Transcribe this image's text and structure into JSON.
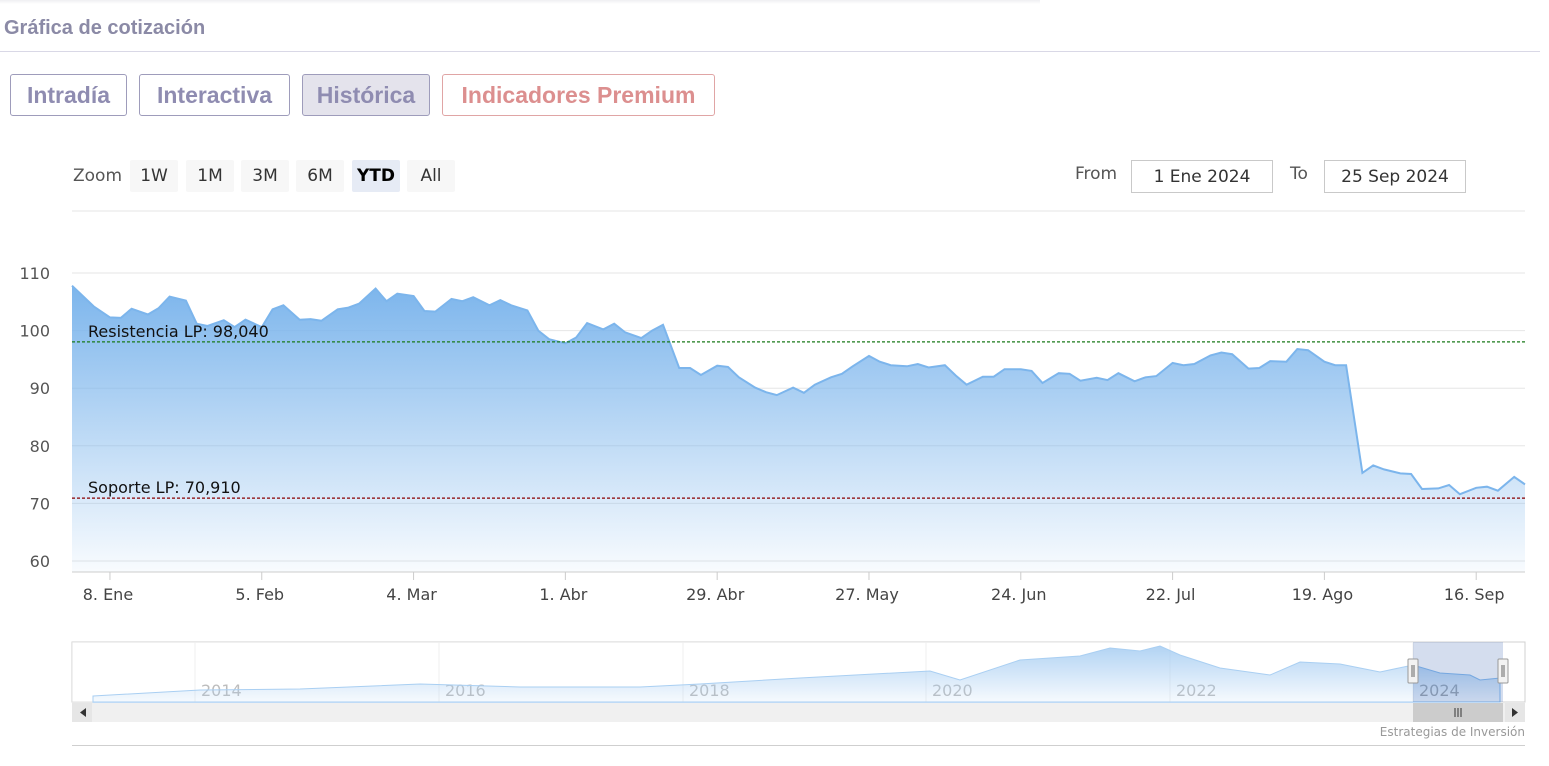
{
  "page": {
    "title": "Gráfica de cotización"
  },
  "tabs": [
    {
      "label": "Intradía",
      "active": false
    },
    {
      "label": "Interactiva",
      "active": false
    },
    {
      "label": "Histórica",
      "active": true
    },
    {
      "label": "Indicadores Premium",
      "premium": true
    }
  ],
  "range_selector": {
    "zoom_label": "Zoom",
    "buttons": [
      "1W",
      "1M",
      "3M",
      "6M",
      "YTD",
      "All"
    ],
    "selected": "YTD",
    "from_label": "From",
    "from_value": "1 Ene 2024",
    "to_label": "To",
    "to_value": "25 Sep 2024"
  },
  "credits": "Estrategias de Inversión",
  "colors": {
    "line": "#7cb5ec",
    "resistance": "#1a7a1a",
    "support": "#8b0000",
    "tab_text": "#8f8cb1",
    "premium_text": "#dc8f8f"
  },
  "chart_data": {
    "type": "area",
    "ylim": [
      60,
      110
    ],
    "yticks": [
      60,
      70,
      80,
      90,
      100,
      110
    ],
    "x_ticks": [
      {
        "date": "2024-01-08",
        "label": "8. Ene"
      },
      {
        "date": "2024-02-05",
        "label": "5. Feb"
      },
      {
        "date": "2024-03-04",
        "label": "4. Mar"
      },
      {
        "date": "2024-04-01",
        "label": "1. Abr"
      },
      {
        "date": "2024-04-29",
        "label": "29. Abr"
      },
      {
        "date": "2024-05-27",
        "label": "27. May"
      },
      {
        "date": "2024-06-24",
        "label": "24. Jun"
      },
      {
        "date": "2024-07-22",
        "label": "22. Jul"
      },
      {
        "date": "2024-08-19",
        "label": "19. Ago"
      },
      {
        "date": "2024-09-16",
        "label": "16. Sep"
      }
    ],
    "xlim": [
      "2024-01-01",
      "2024-09-25"
    ],
    "series": [
      {
        "points": [
          [
            "2024-01-01",
            107.8
          ],
          [
            "2024-01-03",
            106.0
          ],
          [
            "2024-01-05",
            104.2
          ],
          [
            "2024-01-08",
            102.3
          ],
          [
            "2024-01-10",
            102.2
          ],
          [
            "2024-01-12",
            103.8
          ],
          [
            "2024-01-15",
            102.8
          ],
          [
            "2024-01-17",
            103.9
          ],
          [
            "2024-01-19",
            105.9
          ],
          [
            "2024-01-22",
            105.2
          ],
          [
            "2024-01-24",
            101.2
          ],
          [
            "2024-01-26",
            100.8
          ],
          [
            "2024-01-29",
            101.8
          ],
          [
            "2024-01-31",
            100.6
          ],
          [
            "2024-02-02",
            101.9
          ],
          [
            "2024-02-05",
            100.6
          ],
          [
            "2024-02-07",
            103.7
          ],
          [
            "2024-02-09",
            104.4
          ],
          [
            "2024-02-12",
            101.9
          ],
          [
            "2024-02-14",
            102.0
          ],
          [
            "2024-02-16",
            101.7
          ],
          [
            "2024-02-19",
            103.7
          ],
          [
            "2024-02-21",
            104.0
          ],
          [
            "2024-02-23",
            104.7
          ],
          [
            "2024-02-26",
            107.3
          ],
          [
            "2024-02-28",
            105.1
          ],
          [
            "2024-03-01",
            106.4
          ],
          [
            "2024-03-04",
            106.0
          ],
          [
            "2024-03-06",
            103.4
          ],
          [
            "2024-03-08",
            103.3
          ],
          [
            "2024-03-11",
            105.5
          ],
          [
            "2024-03-13",
            105.1
          ],
          [
            "2024-03-15",
            105.8
          ],
          [
            "2024-03-18",
            104.4
          ],
          [
            "2024-03-20",
            105.3
          ],
          [
            "2024-03-22",
            104.4
          ],
          [
            "2024-03-25",
            103.5
          ],
          [
            "2024-03-27",
            100.0
          ],
          [
            "2024-03-29",
            98.5
          ],
          [
            "2024-04-01",
            97.8
          ],
          [
            "2024-04-03",
            98.8
          ],
          [
            "2024-04-05",
            101.3
          ],
          [
            "2024-04-08",
            100.2
          ],
          [
            "2024-04-10",
            101.2
          ],
          [
            "2024-04-12",
            99.7
          ],
          [
            "2024-04-15",
            98.7
          ],
          [
            "2024-04-17",
            100.0
          ],
          [
            "2024-04-19",
            101.0
          ],
          [
            "2024-04-22",
            93.5
          ],
          [
            "2024-04-24",
            93.5
          ],
          [
            "2024-04-26",
            92.3
          ],
          [
            "2024-04-29",
            93.9
          ],
          [
            "2024-05-01",
            93.7
          ],
          [
            "2024-05-03",
            91.9
          ],
          [
            "2024-05-06",
            90.1
          ],
          [
            "2024-05-08",
            89.3
          ],
          [
            "2024-05-10",
            88.8
          ],
          [
            "2024-05-13",
            90.1
          ],
          [
            "2024-05-15",
            89.2
          ],
          [
            "2024-05-17",
            90.6
          ],
          [
            "2024-05-20",
            91.9
          ],
          [
            "2024-05-22",
            92.5
          ],
          [
            "2024-05-24",
            93.8
          ],
          [
            "2024-05-27",
            95.6
          ],
          [
            "2024-05-29",
            94.6
          ],
          [
            "2024-05-31",
            94.0
          ],
          [
            "2024-06-03",
            93.8
          ],
          [
            "2024-06-05",
            94.2
          ],
          [
            "2024-06-07",
            93.6
          ],
          [
            "2024-06-10",
            94.0
          ],
          [
            "2024-06-12",
            92.2
          ],
          [
            "2024-06-14",
            90.6
          ],
          [
            "2024-06-17",
            92.0
          ],
          [
            "2024-06-19",
            92.0
          ],
          [
            "2024-06-21",
            93.3
          ],
          [
            "2024-06-24",
            93.3
          ],
          [
            "2024-06-26",
            93.0
          ],
          [
            "2024-06-28",
            90.9
          ],
          [
            "2024-07-01",
            92.6
          ],
          [
            "2024-07-03",
            92.5
          ],
          [
            "2024-07-05",
            91.3
          ],
          [
            "2024-07-08",
            91.8
          ],
          [
            "2024-07-10",
            91.4
          ],
          [
            "2024-07-12",
            92.6
          ],
          [
            "2024-07-15",
            91.2
          ],
          [
            "2024-07-17",
            91.9
          ],
          [
            "2024-07-19",
            92.1
          ],
          [
            "2024-07-22",
            94.4
          ],
          [
            "2024-07-24",
            94.0
          ],
          [
            "2024-07-26",
            94.2
          ],
          [
            "2024-07-29",
            95.7
          ],
          [
            "2024-07-31",
            96.2
          ],
          [
            "2024-08-02",
            95.9
          ],
          [
            "2024-08-05",
            93.4
          ],
          [
            "2024-08-07",
            93.5
          ],
          [
            "2024-08-09",
            94.7
          ],
          [
            "2024-08-12",
            94.6
          ],
          [
            "2024-08-14",
            96.8
          ],
          [
            "2024-08-16",
            96.6
          ],
          [
            "2024-08-19",
            94.6
          ],
          [
            "2024-08-21",
            94.0
          ],
          [
            "2024-08-23",
            94.0
          ],
          [
            "2024-08-26",
            75.3
          ],
          [
            "2024-08-28",
            76.6
          ],
          [
            "2024-08-30",
            75.9
          ],
          [
            "2024-09-02",
            75.2
          ],
          [
            "2024-09-04",
            75.1
          ],
          [
            "2024-09-06",
            72.5
          ],
          [
            "2024-09-09",
            72.6
          ],
          [
            "2024-09-11",
            73.2
          ],
          [
            "2024-09-13",
            71.6
          ],
          [
            "2024-09-16",
            72.7
          ],
          [
            "2024-09-18",
            72.9
          ],
          [
            "2024-09-20",
            72.2
          ],
          [
            "2024-09-23",
            74.6
          ],
          [
            "2024-09-25",
            73.3
          ]
        ]
      }
    ],
    "plot_lines": [
      {
        "label": "Resistencia LP: 98,040",
        "value": 98.04,
        "color": "#1a7a1a"
      },
      {
        "label": "Soporte LP: 70,910",
        "value": 70.91,
        "color": "#8b0000"
      }
    ],
    "navigator": {
      "x_labels": [
        "2014",
        "2016",
        "2018",
        "2020",
        "2022",
        "2024"
      ]
    }
  }
}
